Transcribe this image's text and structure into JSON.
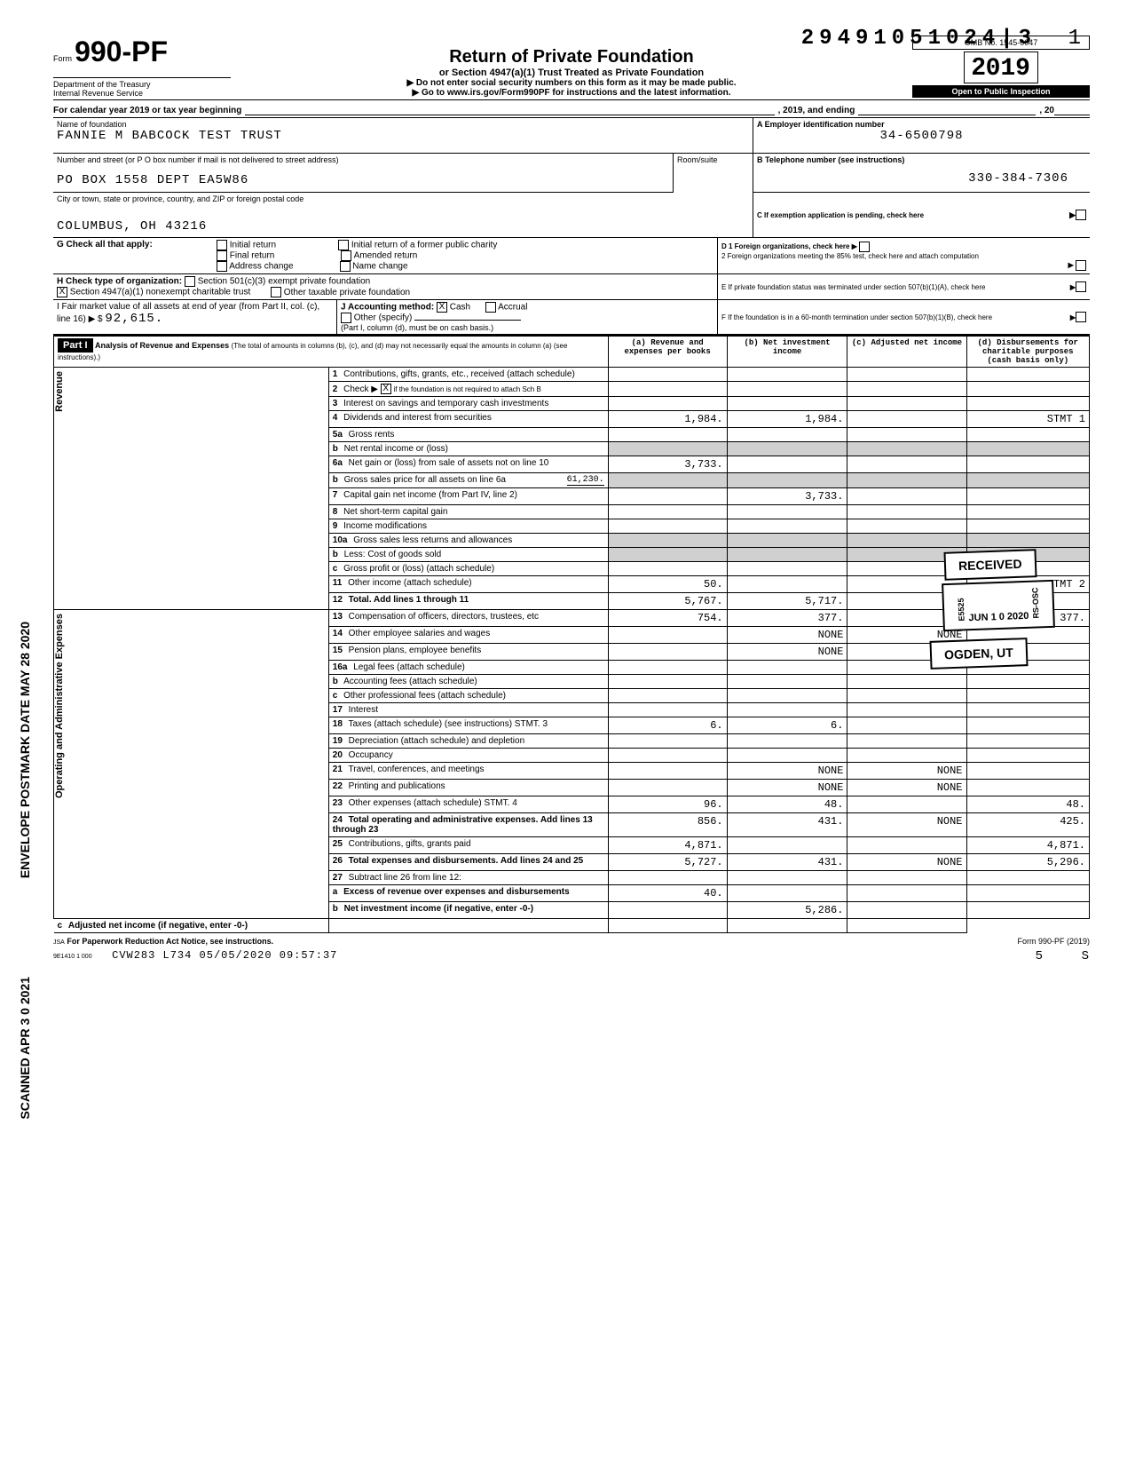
{
  "topCode": "29491051024|3",
  "pageNum": "1",
  "form": {
    "label": "Form",
    "number": "990-PF",
    "dept1": "Department of the Treasury",
    "dept2": "Internal Revenue Service"
  },
  "title": {
    "main": "Return of Private Foundation",
    "sub": "or Section 4947(a)(1) Trust Treated as Private Foundation",
    "instr1": "▶ Do not enter social security numbers on this form as it may be made public.",
    "instr2": "▶ Go to www.irs.gov/Form990PF for instructions and the latest information."
  },
  "omb": {
    "line": "OMB No. 1545-0047",
    "yearPrefix": "2",
    "yearDigits": "019",
    "inspect": "Open to Public Inspection"
  },
  "calYear": {
    "prefix": "For calendar year 2019 or tax year beginning",
    "mid": ", 2019, and ending",
    "suffix": ", 20"
  },
  "foundation": {
    "nameLabel": "Name of foundation",
    "name": "FANNIE M BABCOCK TEST TRUST",
    "addrLabel": "Number and street (or P O box number if mail is not delivered to street address)",
    "addr": "PO BOX 1558 DEPT EA5W86",
    "roomLabel": "Room/suite",
    "cityLabel": "City or town, state or province, country, and ZIP or foreign postal code",
    "city": "COLUMBUS, OH 43216"
  },
  "rightBoxes": {
    "A": "A  Employer identification number",
    "ein": "34-6500798",
    "B": "B  Telephone number (see instructions)",
    "phone": "330-384-7306",
    "C": "C  If exemption application is pending, check here",
    "D1": "D  1  Foreign organizations, check here",
    "D2": "2  Foreign organizations meeting the 85% test, check here and attach computation",
    "E": "E  If private foundation status was terminated under section 507(b)(1)(A), check here",
    "F": "F  If the foundation is in a 60-month termination under section 507(b)(1)(B), check here"
  },
  "G": {
    "label": "G  Check all that apply:",
    "opts": [
      "Initial return",
      "Final return",
      "Address change",
      "Initial return of a former public charity",
      "Amended return",
      "Name change"
    ]
  },
  "H": {
    "label": "H  Check type of organization:",
    "opt1": "Section 501(c)(3) exempt private foundation",
    "opt2": "Section 4947(a)(1) nonexempt charitable trust",
    "opt2checked": "X",
    "opt3": "Other taxable private foundation"
  },
  "I": {
    "label": "I  Fair market value of all assets at end of year (from Part II, col. (c), line 16) ▶ $",
    "value": "92,615."
  },
  "J": {
    "label": "J  Accounting method:",
    "cash": "Cash",
    "cashChecked": "X",
    "accrual": "Accrual",
    "other": "Other (specify)",
    "note": "(Part I, column (d), must be on cash basis.)"
  },
  "partI": {
    "header": "Part I",
    "title": "Analysis of Revenue and Expenses",
    "titleNote": "(The total of amounts in columns (b), (c), and (d) may not necessarily equal the amounts in column (a) (see instructions).)",
    "colA": "(a) Revenue and expenses per books",
    "colB": "(b) Net investment income",
    "colC": "(c) Adjusted net income",
    "colD": "(d) Disbursements for charitable purposes (cash basis only)"
  },
  "sideLabels": {
    "revenue": "Revenue",
    "opAdmin": "Operating and Administrative Expenses"
  },
  "rows": [
    {
      "n": "1",
      "label": "Contributions, gifts, grants, etc., received (attach schedule)",
      "a": "",
      "b": "",
      "c": "",
      "d": ""
    },
    {
      "n": "2",
      "label": "Check ▶",
      "labelExtra": "if the foundation is not required to attach Sch B",
      "check": "X",
      "a": "",
      "b": "",
      "c": "",
      "d": ""
    },
    {
      "n": "3",
      "label": "Interest on savings and temporary cash investments",
      "a": "",
      "b": "",
      "c": "",
      "d": ""
    },
    {
      "n": "4",
      "label": "Dividends and interest from securities",
      "a": "1,984.",
      "b": "1,984.",
      "c": "",
      "d": "STMT 1"
    },
    {
      "n": "5a",
      "label": "Gross rents",
      "a": "",
      "b": "",
      "c": "",
      "d": ""
    },
    {
      "n": "b",
      "label": "Net rental income or (loss)",
      "a": "",
      "b": "",
      "c": "",
      "d": "",
      "shadeABCD": true
    },
    {
      "n": "6a",
      "label": "Net gain or (loss) from sale of assets not on line 10",
      "a": "3,733.",
      "b": "",
      "c": "",
      "d": ""
    },
    {
      "n": "b",
      "label": "Gross sales price for all assets on line 6a",
      "val": "61,230.",
      "a": "",
      "b": "",
      "c": "",
      "d": "",
      "shadeAll": true
    },
    {
      "n": "7",
      "label": "Capital gain net income (from Part IV, line 2)",
      "a": "",
      "b": "3,733.",
      "c": "",
      "d": ""
    },
    {
      "n": "8",
      "label": "Net short-term capital gain",
      "a": "",
      "b": "",
      "c": "",
      "d": ""
    },
    {
      "n": "9",
      "label": "Income modifications",
      "a": "",
      "b": "",
      "c": "",
      "d": ""
    },
    {
      "n": "10a",
      "label": "Gross sales less returns and allowances",
      "a": "",
      "b": "",
      "c": "",
      "d": "",
      "shadeAll": true
    },
    {
      "n": "b",
      "label": "Less: Cost of goods sold",
      "a": "",
      "b": "",
      "c": "",
      "d": "",
      "shadeAll": true
    },
    {
      "n": "c",
      "label": "Gross profit or (loss) (attach schedule)",
      "a": "",
      "b": "",
      "c": "",
      "d": ""
    },
    {
      "n": "11",
      "label": "Other income (attach schedule)",
      "a": "50.",
      "b": "",
      "c": "",
      "d": "STMT 2"
    },
    {
      "n": "12",
      "label": "Total. Add lines 1 through 11",
      "bold": true,
      "a": "5,767.",
      "b": "5,717.",
      "c": "",
      "d": ""
    },
    {
      "n": "13",
      "label": "Compensation of officers, directors, trustees, etc",
      "a": "754.",
      "b": "377.",
      "c": "",
      "d": "377."
    },
    {
      "n": "14",
      "label": "Other employee salaries and wages",
      "a": "",
      "b": "NONE",
      "c": "NONE",
      "d": ""
    },
    {
      "n": "15",
      "label": "Pension plans, employee benefits",
      "a": "",
      "b": "NONE",
      "c": "NONE",
      "d": ""
    },
    {
      "n": "16a",
      "label": "Legal fees (attach schedule)",
      "a": "",
      "b": "",
      "c": "",
      "d": ""
    },
    {
      "n": "b",
      "label": "Accounting fees (attach schedule)",
      "a": "",
      "b": "",
      "c": "",
      "d": ""
    },
    {
      "n": "c",
      "label": "Other professional fees (attach schedule)",
      "a": "",
      "b": "",
      "c": "",
      "d": ""
    },
    {
      "n": "17",
      "label": "Interest",
      "a": "",
      "b": "",
      "c": "",
      "d": ""
    },
    {
      "n": "18",
      "label": "Taxes (attach schedule) (see instructions) STMT. 3",
      "a": "6.",
      "b": "6.",
      "c": "",
      "d": ""
    },
    {
      "n": "19",
      "label": "Depreciation (attach schedule) and depletion",
      "a": "",
      "b": "",
      "c": "",
      "d": ""
    },
    {
      "n": "20",
      "label": "Occupancy",
      "a": "",
      "b": "",
      "c": "",
      "d": ""
    },
    {
      "n": "21",
      "label": "Travel, conferences, and meetings",
      "a": "",
      "b": "NONE",
      "c": "NONE",
      "d": ""
    },
    {
      "n": "22",
      "label": "Printing and publications",
      "a": "",
      "b": "NONE",
      "c": "NONE",
      "d": ""
    },
    {
      "n": "23",
      "label": "Other expenses (attach schedule) STMT. 4",
      "a": "96.",
      "b": "48.",
      "c": "",
      "d": "48."
    },
    {
      "n": "24",
      "label": "Total operating and administrative expenses. Add lines 13 through 23",
      "bold": true,
      "a": "856.",
      "b": "431.",
      "c": "NONE",
      "d": "425."
    },
    {
      "n": "25",
      "label": "Contributions, gifts, grants paid",
      "a": "4,871.",
      "b": "",
      "c": "",
      "d": "4,871."
    },
    {
      "n": "26",
      "label": "Total expenses and disbursements. Add lines 24 and 25",
      "bold": true,
      "a": "5,727.",
      "b": "431.",
      "c": "NONE",
      "d": "5,296."
    },
    {
      "n": "27",
      "label": "Subtract line 26 from line 12:",
      "a": "",
      "b": "",
      "c": "",
      "d": ""
    },
    {
      "n": "a",
      "label": "Excess of revenue over expenses and disbursements",
      "bold": true,
      "a": "40.",
      "b": "",
      "c": "",
      "d": ""
    },
    {
      "n": "b",
      "label": "Net investment income (if negative, enter -0-)",
      "bold": true,
      "a": "",
      "b": "5,286.",
      "c": "",
      "d": ""
    },
    {
      "n": "c",
      "label": "Adjusted net income (if negative, enter -0-)",
      "bold": true,
      "a": "",
      "b": "",
      "c": "",
      "d": ""
    }
  ],
  "stamps": {
    "received": "RECEIVED",
    "recCode": "E5525",
    "recDate": "JUN 1 0 2020",
    "recSuffix": "RS-OSC",
    "ogden": "OGDEN, UT"
  },
  "footer": {
    "jsa": "JSA",
    "paperwork": "For Paperwork Reduction Act Notice, see instructions.",
    "formRef": "Form 990-PF (2019)",
    "code": "9E1410 1 000",
    "batch": "CVW283 L734  05/05/2020 09:57:37",
    "right1": "5",
    "right2": "S"
  },
  "leftVertical": {
    "envelope": "ENVELOPE POSTMARK DATE MAY 28 2020",
    "scanned": "SCANNED APR 3 0 2021"
  }
}
